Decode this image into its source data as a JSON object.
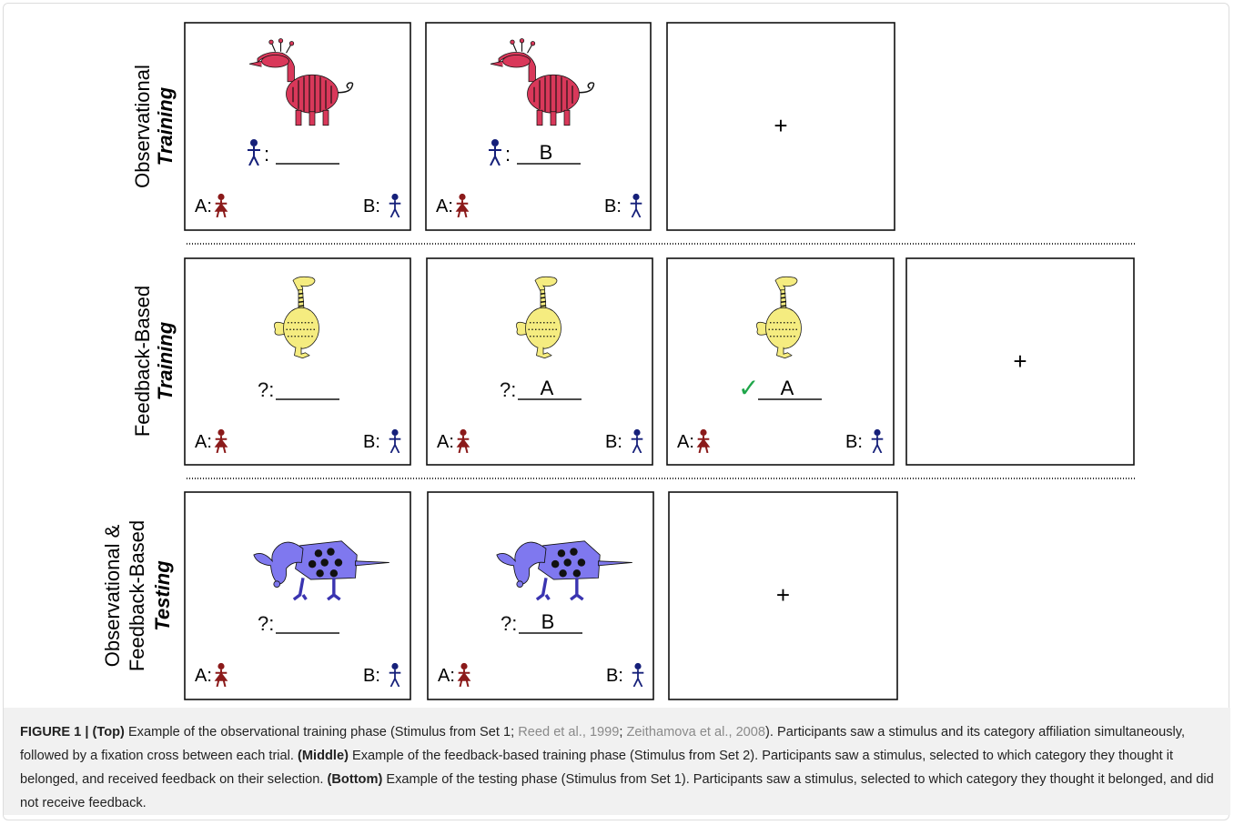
{
  "figure": {
    "rows": [
      {
        "label": [
          "Observational",
          "Training"
        ],
        "panels": [
          {
            "prompt": ":",
            "key_a": "A:",
            "key_b": "B:"
          },
          {
            "prompt": ":",
            "answer": "B",
            "key_a": "A:",
            "key_b": "B:"
          },
          {
            "fixation": "+"
          }
        ]
      },
      {
        "label": [
          "Feedback-Based",
          "Training"
        ],
        "panels": [
          {
            "prompt": "?:",
            "key_a": "A:",
            "key_b": "B:"
          },
          {
            "prompt": "?:",
            "answer": "A",
            "key_a": "A:",
            "key_b": "B:"
          },
          {
            "prompt": "✓",
            "answer": "A",
            "key_a": "A:",
            "key_b": "B:"
          },
          {
            "fixation": "+"
          }
        ]
      },
      {
        "label": [
          "Observational &",
          "Feedback-Based",
          "Testing"
        ],
        "panels": [
          {
            "prompt": "?:",
            "key_a": "A:",
            "key_b": "B:"
          },
          {
            "prompt": "?:",
            "answer": "B",
            "key_a": "A:",
            "key_b": "B:"
          },
          {
            "fixation": "+"
          }
        ]
      }
    ]
  },
  "caption": {
    "segments": [
      "FIGURE 1 | ",
      "(Top)",
      " Example of the observational training phase (Stimulus from Set 1; ",
      "Reed et al., 1999",
      "; ",
      "Zeithamova et al., 2008",
      "). Participants saw a stimulus and its category affiliation simultaneously, followed by a fixation cross between each trial. ",
      "(Middle)",
      " Example of the feedback-based training phase (Stimulus from Set 2). Participants saw a stimulus, selected to which category they thought it belonged, and received feedback on their selection. ",
      "(Bottom)",
      " Example of the testing phase (Stimulus from Set 1). Participants saw a stimulus, selected to which category they thought it belonged, and did not receive feedback."
    ]
  }
}
